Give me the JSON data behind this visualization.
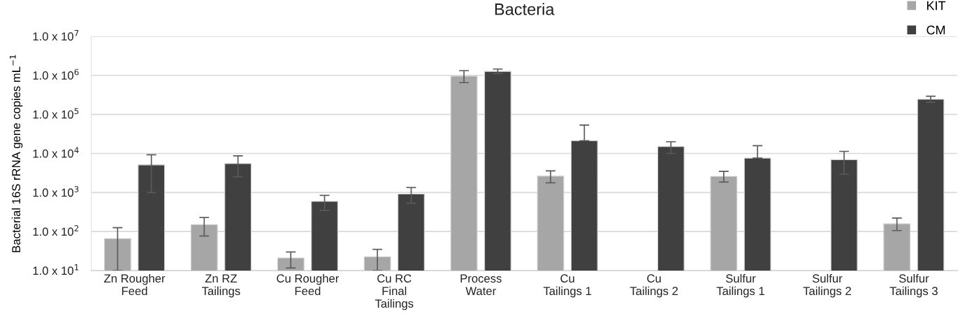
{
  "chart_data": {
    "type": "bar",
    "title": "Bacteria",
    "ylabel": "Bacterial 16S rRNA gene copies mL$^{−1}$",
    "categories": [
      "Zn Rougher\nFeed",
      "Zn RZ\nTailings",
      "Cu Rougher\nFeed",
      "Cu RC\nFinal\nTailings",
      "Process\nWater",
      "Cu\nTailings 1",
      "Cu\nTailings 2",
      "Sulfur\nTailings 1",
      "Sulfur\nTailings 2",
      "Sulfur\nTailings 3"
    ],
    "series": [
      {
        "name": "KIT",
        "color": "#a6a6a6",
        "values": [
          66,
          151,
          21,
          22.6,
          955000,
          2630,
          null,
          2590,
          null,
          158
        ],
        "errors": [
          [
            10,
            126
          ],
          [
            77,
            229
          ],
          [
            11.7,
            30
          ],
          [
            10,
            35
          ],
          [
            650000,
            1320000
          ],
          [
            1770,
            3580
          ],
          null,
          [
            1850,
            3470
          ],
          null,
          [
            106,
            222
          ]
        ]
      },
      {
        "name": "CM",
        "color": "#404040",
        "values": [
          5090,
          5500,
          593,
          912,
          1260000,
          21200,
          14900,
          7590,
          6920,
          243800
        ],
        "errors": [
          [
            1000,
            9260
          ],
          [
            2550,
            8710
          ],
          [
            347,
            845
          ],
          [
            533,
            1340
          ],
          [
            1110000,
            1450000
          ],
          [
            21200,
            53300
          ],
          [
            10000,
            19950
          ],
          [
            7590,
            15800
          ],
          [
            2930,
            11300
          ],
          [
            203000,
            293000
          ]
        ]
      }
    ],
    "log": true,
    "ylim": [
      10,
      10000000
    ],
    "yticks": [
      {
        "value": 10,
        "label": "1.0 x 10$^{1}$"
      },
      {
        "value": 100,
        "label": "1.0 x 10$^{2}$"
      },
      {
        "value": 1000,
        "label": "1.0 x 10$^{3}$"
      },
      {
        "value": 10000,
        "label": "1.0 x 10$^{4}$"
      },
      {
        "value": 100000,
        "label": "1.0 x 10$^{5}$"
      },
      {
        "value": 1000000,
        "label": "1.0 x 10$^{6}$"
      },
      {
        "value": 10000000,
        "label": "1.0 x 10$^{7}$"
      }
    ],
    "grid": "y",
    "legend": "top right"
  }
}
